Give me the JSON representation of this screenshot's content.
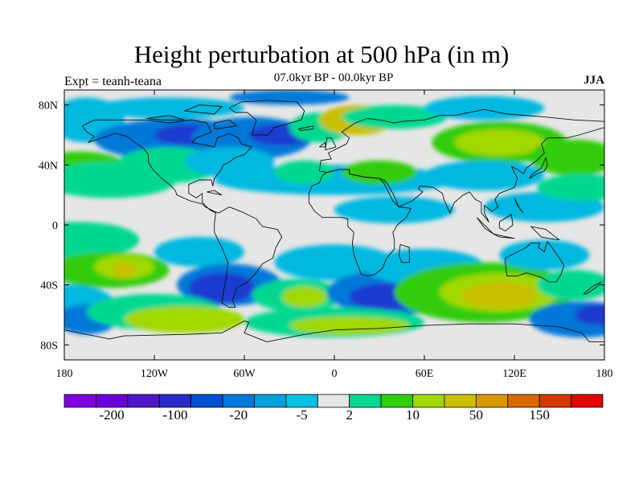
{
  "title": "Height perturbation at 500 hPa (in m)",
  "subtitle": "07.0kyr BP - 00.0kyr BP",
  "experiment": "Expt = teanh-teana",
  "season": "JJA",
  "map": {
    "projection": "cylindrical equidistant",
    "lon_range": [
      -180,
      180
    ],
    "lat_range": [
      -90,
      90
    ],
    "lon_tick_labels": [
      "180",
      "120W",
      "60W",
      "0",
      "60E",
      "120E",
      "180"
    ],
    "lat_tick_labels": [
      "80N",
      "40N",
      "0",
      "40S",
      "80S"
    ],
    "coastlines": true
  },
  "colorbar": {
    "colors": [
      "#7e00e0",
      "#6a00d8",
      "#4c18c8",
      "#2a2ac8",
      "#0050d0",
      "#0078d8",
      "#00a0d8",
      "#00c0e0",
      "#e6e6e6",
      "#00d890",
      "#30cc10",
      "#a0d800",
      "#c8c000",
      "#d89800",
      "#d86800",
      "#d83800",
      "#e00000"
    ],
    "labels": [
      "-200",
      "-100",
      "-20",
      "-5",
      "2",
      "10",
      "50",
      "150"
    ]
  },
  "field_colors": {
    "deep_blue": "#1a3ad0",
    "blue": "#0078d8",
    "light_blue": "#00b8e0",
    "neutral": "#e6e6e6",
    "teal": "#00d890",
    "green": "#30cc10",
    "yellow_green": "#a0d800",
    "olive": "#c8c000",
    "orange": "#d89800"
  }
}
